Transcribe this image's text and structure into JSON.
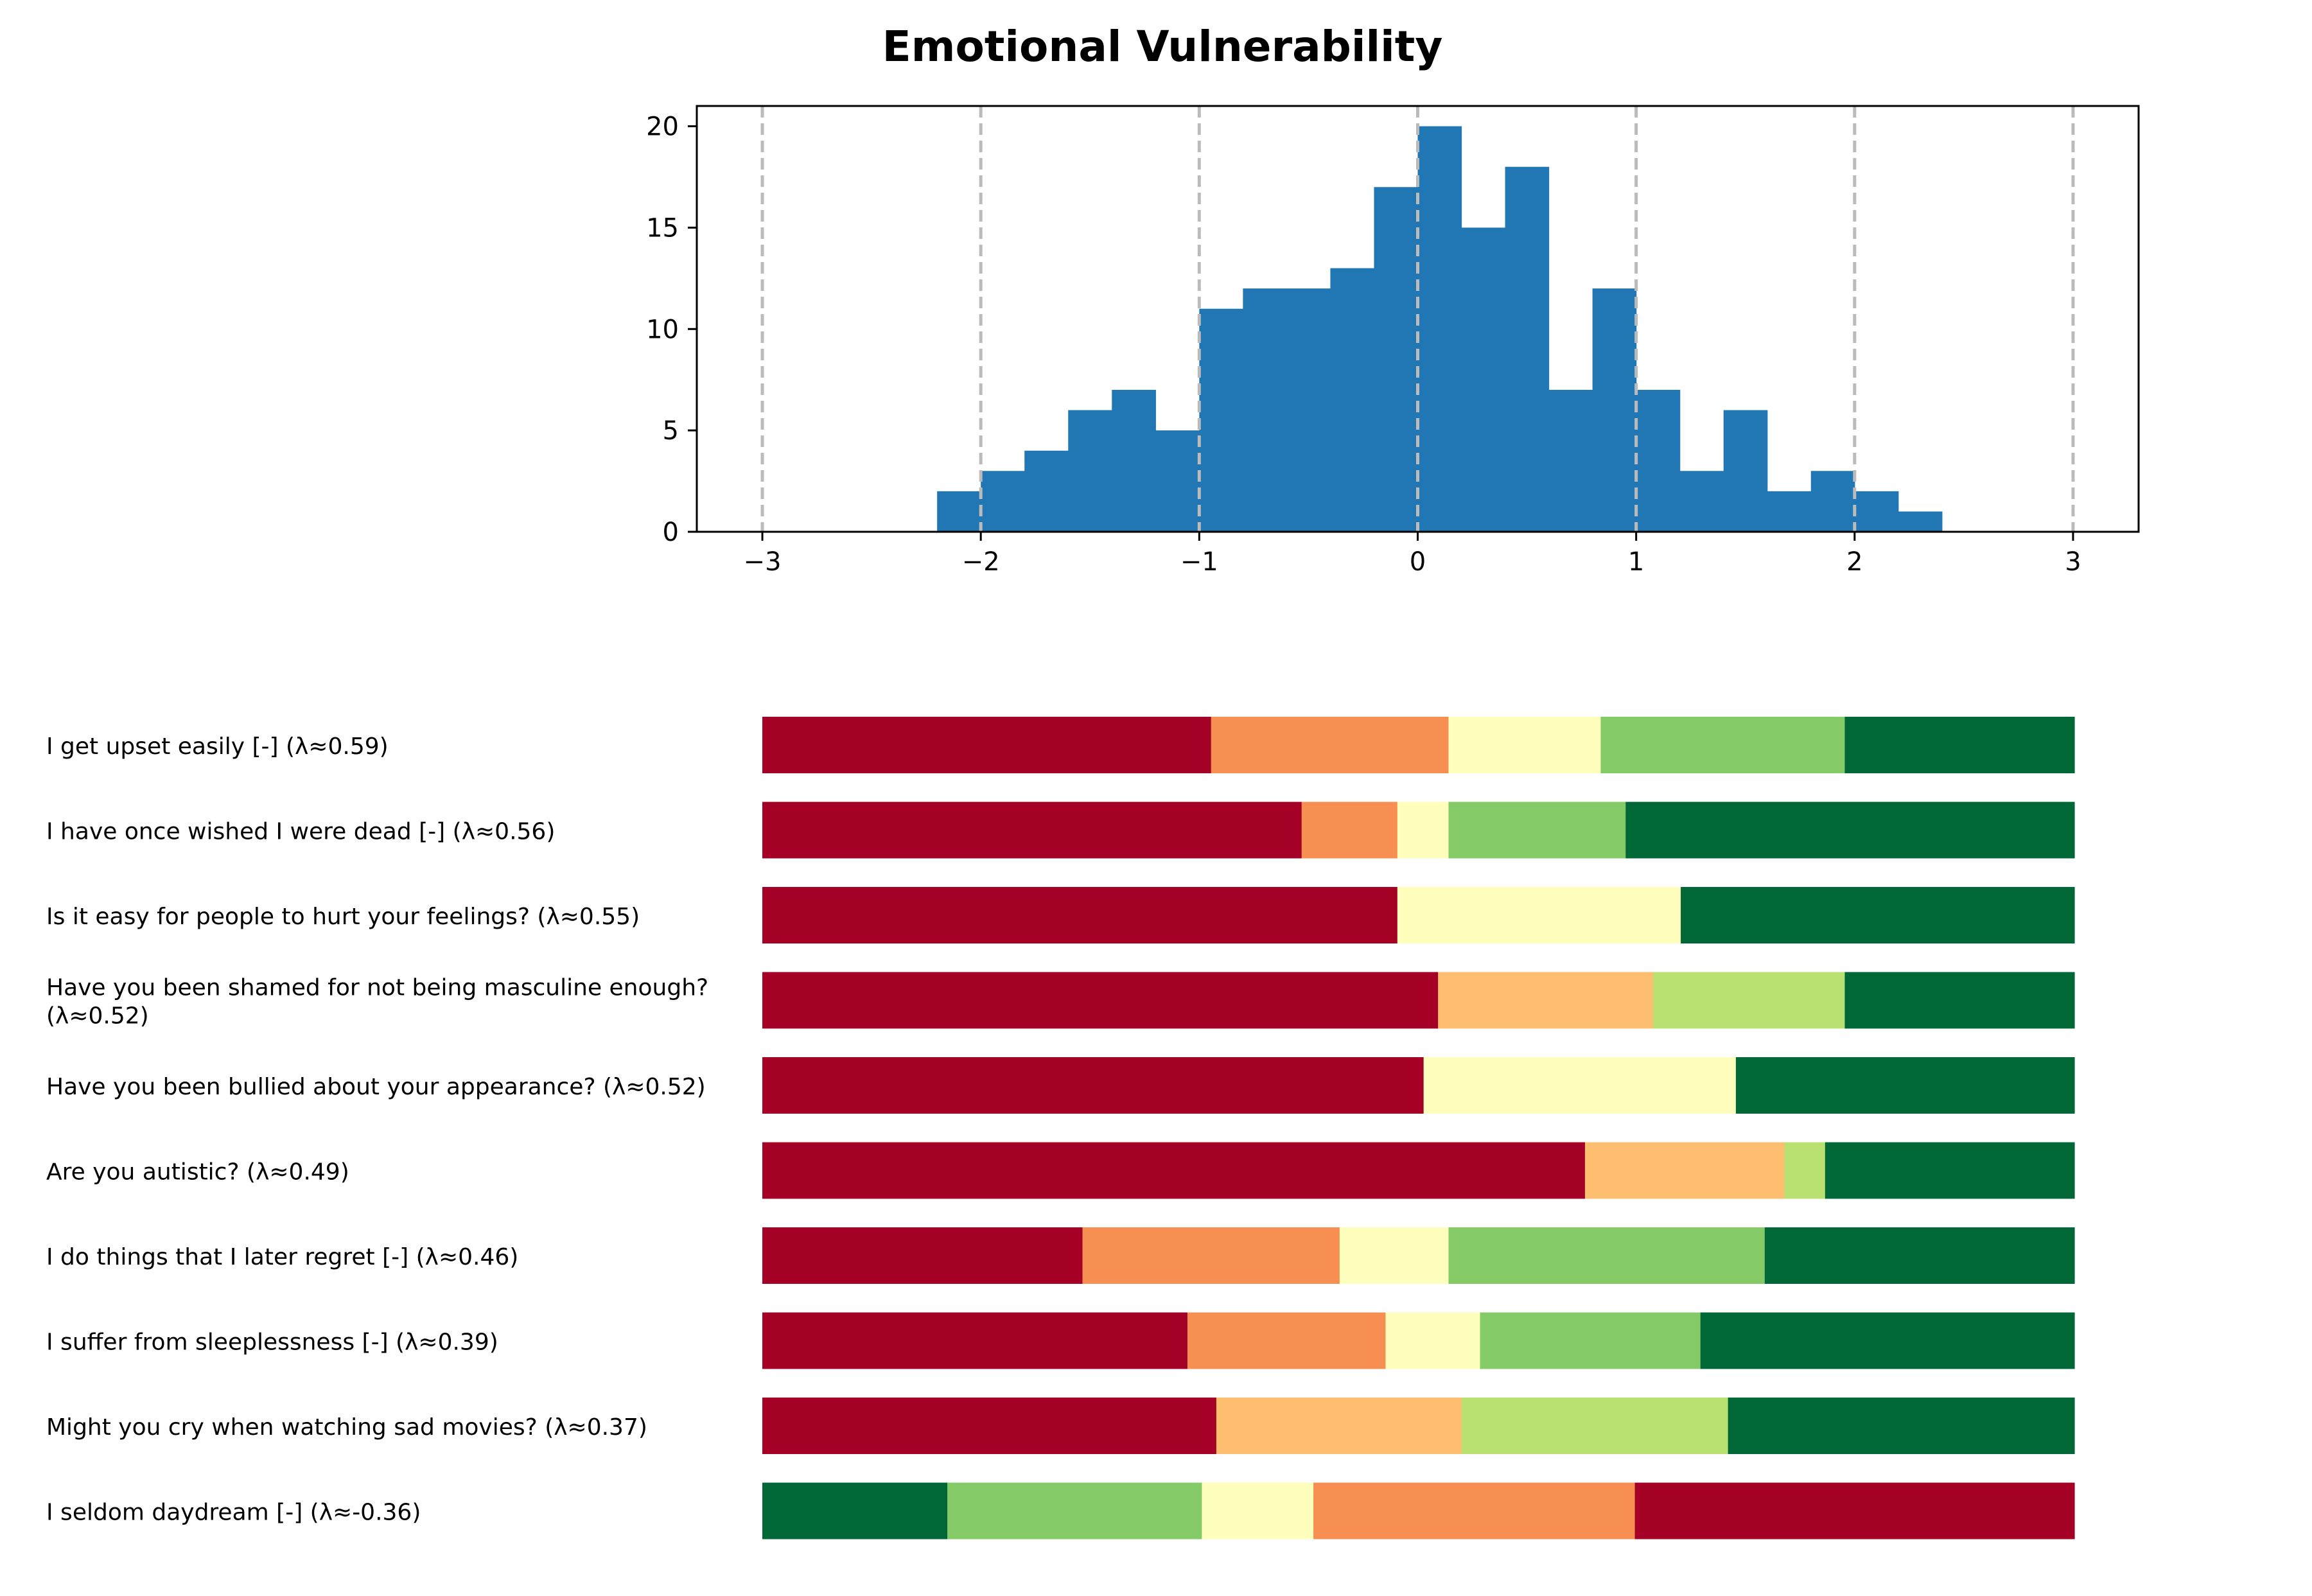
{
  "chart_data": [
    {
      "type": "bar",
      "subtype": "histogram",
      "title": "Emotional Vulnerability",
      "xlabel": "",
      "ylabel": "",
      "xlim": [
        -3.3,
        3.3
      ],
      "ylim": [
        0,
        21
      ],
      "bin_width": 0.2,
      "bin_start": -2.2,
      "counts": [
        2,
        3,
        4,
        6,
        7,
        5,
        11,
        12,
        12,
        13,
        17,
        20,
        15,
        18,
        7,
        12,
        7,
        3,
        6,
        2,
        3,
        2,
        1
      ],
      "x_ticks": [
        {
          "value": -3,
          "label": "−3"
        },
        {
          "value": -2,
          "label": "−2"
        },
        {
          "value": -1,
          "label": "−1"
        },
        {
          "value": 0,
          "label": "0"
        },
        {
          "value": 1,
          "label": "1"
        },
        {
          "value": 2,
          "label": "2"
        },
        {
          "value": 3,
          "label": "3"
        }
      ],
      "y_ticks": [
        {
          "value": 0,
          "label": "0"
        },
        {
          "value": 5,
          "label": "5"
        },
        {
          "value": 10,
          "label": "10"
        },
        {
          "value": 15,
          "label": "15"
        },
        {
          "value": 20,
          "label": "20"
        }
      ],
      "vertical_gridlines": [
        -3,
        -2,
        -1,
        0,
        1,
        2,
        3
      ],
      "bar_color": "#2077b4",
      "grid_color": "#bbbbbb"
    },
    {
      "type": "bar",
      "subtype": "stacked-horizontal-100",
      "response_colors": [
        "#a50026",
        "#f88f52",
        "#fdbe6f",
        "#fefebd",
        "#b8e172",
        "#84ca67",
        "#006837"
      ],
      "items": [
        {
          "label": [
            "I get upset easily [-] (λ≈0.59)"
          ],
          "segments": [
            {
              "share": 0.342,
              "c": 0
            },
            {
              "share": 0.181,
              "c": 1
            },
            {
              "share": 0.116,
              "c": 3
            },
            {
              "share": 0.186,
              "c": 5
            },
            {
              "share": 0.175,
              "c": 6
            }
          ]
        },
        {
          "label": [
            "I have once wished I were dead [-] (λ≈0.56)"
          ],
          "segments": [
            {
              "share": 0.411,
              "c": 0
            },
            {
              "share": 0.073,
              "c": 1
            },
            {
              "share": 0.039,
              "c": 3
            },
            {
              "share": 0.135,
              "c": 5
            },
            {
              "share": 0.342,
              "c": 6
            }
          ]
        },
        {
          "label": [
            "Is it easy for people to hurt your feelings? (λ≈0.55)"
          ],
          "segments": [
            {
              "share": 0.484,
              "c": 0
            },
            {
              "share": 0.216,
              "c": 3
            },
            {
              "share": 0.3,
              "c": 6
            }
          ]
        },
        {
          "label": [
            "Have you been shamed for not being masculine enough?",
            "(λ≈0.52)"
          ],
          "segments": [
            {
              "share": 0.515,
              "c": 0
            },
            {
              "share": 0.164,
              "c": 2
            },
            {
              "share": 0.146,
              "c": 4
            },
            {
              "share": 0.175,
              "c": 6
            }
          ]
        },
        {
          "label": [
            "Have you been bullied about your appearance? (λ≈0.52)"
          ],
          "segments": [
            {
              "share": 0.504,
              "c": 0
            },
            {
              "share": 0.238,
              "c": 3
            },
            {
              "share": 0.258,
              "c": 6
            }
          ]
        },
        {
          "label": [
            "Are you autistic? (λ≈0.49)"
          ],
          "segments": [
            {
              "share": 0.627,
              "c": 0
            },
            {
              "share": 0.152,
              "c": 2
            },
            {
              "share": 0.031,
              "c": 4
            },
            {
              "share": 0.19,
              "c": 6
            }
          ]
        },
        {
          "label": [
            "I do things that I later regret [-] (λ≈0.46)"
          ],
          "segments": [
            {
              "share": 0.244,
              "c": 0
            },
            {
              "share": 0.196,
              "c": 1
            },
            {
              "share": 0.083,
              "c": 3
            },
            {
              "share": 0.241,
              "c": 5
            },
            {
              "share": 0.236,
              "c": 6
            }
          ]
        },
        {
          "label": [
            "I suffer from sleeplessness [-] (λ≈0.39)"
          ],
          "segments": [
            {
              "share": 0.324,
              "c": 0
            },
            {
              "share": 0.151,
              "c": 1
            },
            {
              "share": 0.072,
              "c": 3
            },
            {
              "share": 0.168,
              "c": 5
            },
            {
              "share": 0.285,
              "c": 6
            }
          ]
        },
        {
          "label": [
            "Might you cry when watching sad movies? (λ≈0.37)"
          ],
          "segments": [
            {
              "share": 0.346,
              "c": 0
            },
            {
              "share": 0.187,
              "c": 2
            },
            {
              "share": 0.203,
              "c": 4
            },
            {
              "share": 0.264,
              "c": 6
            }
          ]
        },
        {
          "label": [
            "I seldom daydream [-] (λ≈-0.36)"
          ],
          "segments": [
            {
              "share": 0.141,
              "c": 6
            },
            {
              "share": 0.194,
              "c": 5
            },
            {
              "share": 0.085,
              "c": 3
            },
            {
              "share": 0.245,
              "c": 1
            },
            {
              "share": 0.335,
              "c": 0
            }
          ]
        }
      ]
    }
  ]
}
